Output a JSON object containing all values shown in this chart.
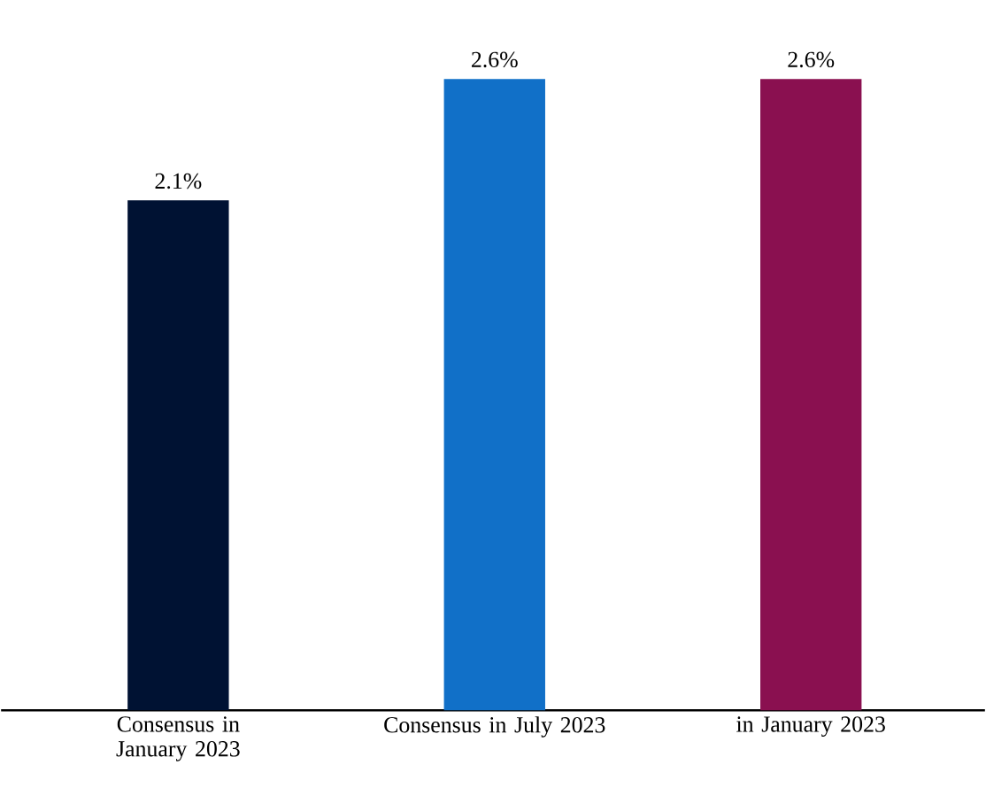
{
  "chart_data": {
    "type": "bar",
    "categories": [
      "Consensus in January 2023",
      "Consensus in July 2023",
      "in January 2023"
    ],
    "values": [
      2.1,
      2.6,
      2.6
    ],
    "colors": [
      "#001233",
      "#1170c8",
      "#8a1050"
    ],
    "value_labels": [
      "2.1%",
      "2.6%",
      "2.6%"
    ]
  }
}
